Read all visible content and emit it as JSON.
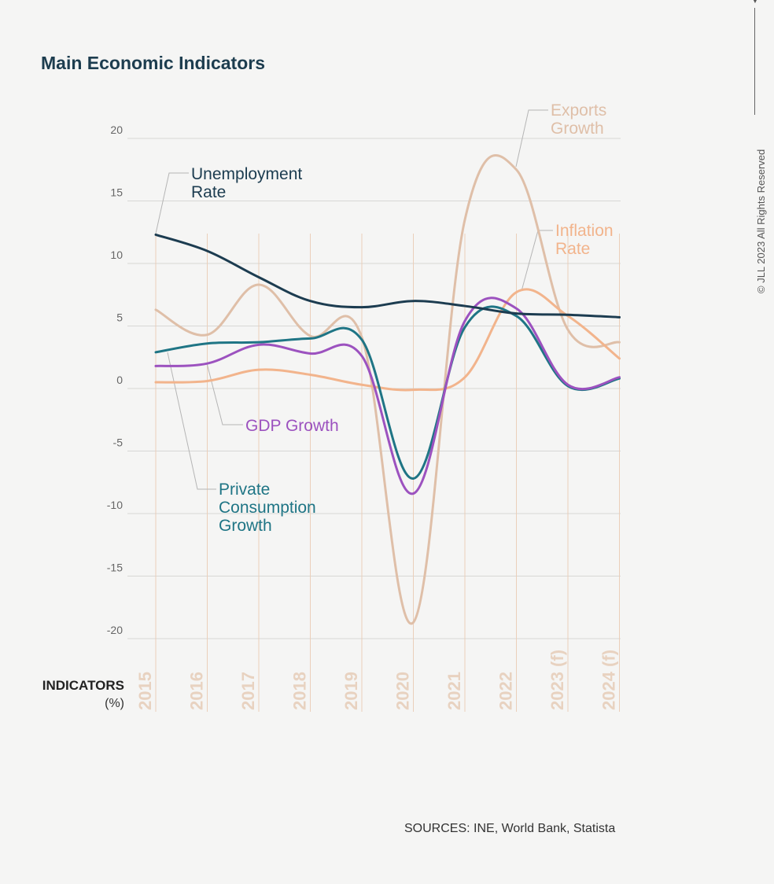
{
  "page": {
    "title": "Main Economic Indicators",
    "indicators_label": "INDICATORS",
    "indicators_unit": "(%)",
    "sources": "SOURCES: INE, World Bank, Statista",
    "copyright": "© JLL  2023 All Rights Reserved"
  },
  "chart_data": {
    "type": "line",
    "title": "Main Economic Indicators",
    "xlabel": "INDICATORS (%)",
    "ylabel": "",
    "categories": [
      "2015",
      "2016",
      "2017",
      "2018",
      "2019",
      "2020",
      "2021",
      "2022",
      "2023 (f)",
      "2024 (f)"
    ],
    "yticks": [
      20,
      15,
      10,
      5,
      0,
      -5,
      -10,
      -15,
      -20
    ],
    "ylim": [
      -20,
      20
    ],
    "grid": true,
    "series": [
      {
        "name": "Unemployment Rate",
        "color": "#1c3c50",
        "values": [
          12.3,
          11.0,
          8.9,
          7.0,
          6.5,
          7.0,
          6.6,
          6.0,
          5.9,
          5.7
        ]
      },
      {
        "name": "Exports Growth",
        "color": "#dfbfa8",
        "values": [
          6.3,
          4.3,
          8.3,
          4.2,
          4.1,
          -18.7,
          13.5,
          17.5,
          4.7,
          3.7
        ]
      },
      {
        "name": "Inflation Rate",
        "color": "#f2b48c",
        "values": [
          0.5,
          0.6,
          1.5,
          1.1,
          0.3,
          -0.1,
          0.9,
          7.7,
          5.8,
          2.4
        ]
      },
      {
        "name": "GDP Growth",
        "color": "#9c52bf",
        "values": [
          1.8,
          2.0,
          3.5,
          2.8,
          2.6,
          -8.4,
          5.4,
          6.4,
          0.3,
          0.9
        ]
      },
      {
        "name": "Private Consumption Growth",
        "color": "#1f7585",
        "values": [
          2.9,
          3.6,
          3.7,
          4.0,
          3.9,
          -7.2,
          4.9,
          5.8,
          0.2,
          0.8
        ]
      }
    ],
    "labels": [
      {
        "series": "Unemployment Rate",
        "lines": [
          "Unemployment",
          "Rate"
        ]
      },
      {
        "series": "Exports Growth",
        "lines": [
          "Exports",
          "Growth"
        ]
      },
      {
        "series": "Inflation Rate",
        "lines": [
          "Inflation",
          "Rate"
        ]
      },
      {
        "series": "GDP Growth",
        "lines": [
          "GDP Growth"
        ]
      },
      {
        "series": "Private Consumption Growth",
        "lines": [
          "Private",
          "Consumption",
          "Growth"
        ]
      }
    ]
  }
}
